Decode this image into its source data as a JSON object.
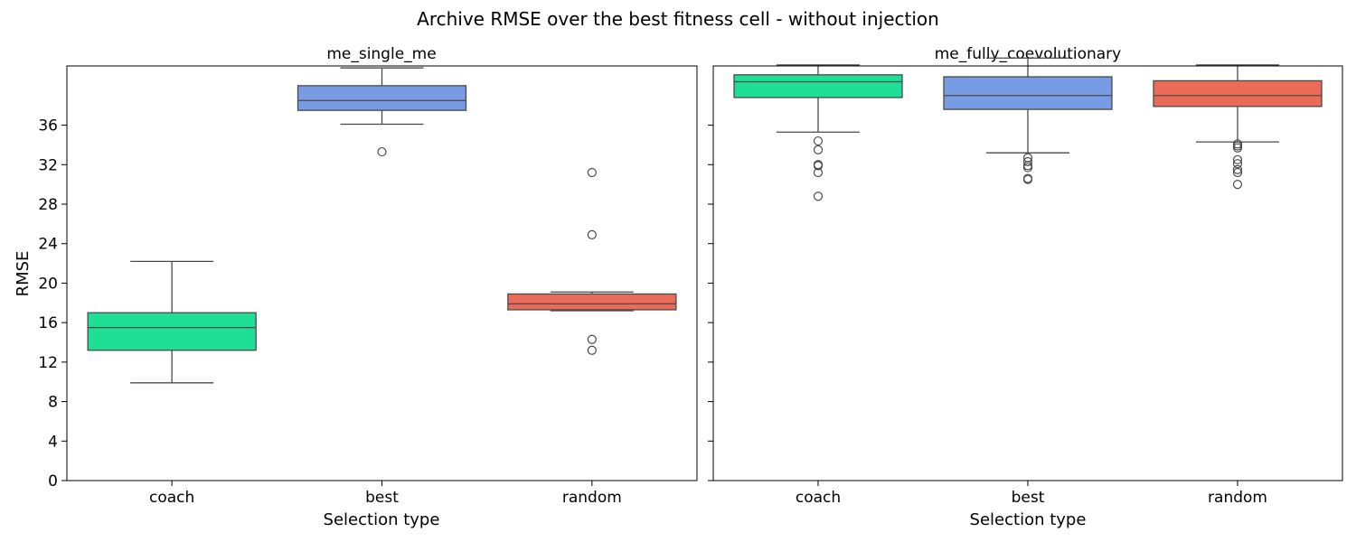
{
  "figure": {
    "title": "Archive RMSE over the best fitness cell - without injection"
  },
  "colors": {
    "coach": "#1fdf96",
    "best": "#779ce4",
    "random": "#ea6b58",
    "line": "#4a4a4a",
    "axes": "#000000"
  },
  "chart_data": [
    {
      "type": "box",
      "title": "me_single_me",
      "xlabel": "Selection type",
      "ylabel": "RMSE",
      "ylim": [
        0,
        42
      ],
      "yticks": [
        0,
        4,
        8,
        12,
        16,
        20,
        24,
        28,
        32,
        36
      ],
      "show_ytick_labels": true,
      "grid": false,
      "categories": [
        "coach",
        "best",
        "random"
      ],
      "boxes": [
        {
          "name": "coach",
          "whisker_low": 9.9,
          "q1": 13.2,
          "median": 15.5,
          "q3": 17.0,
          "whisker_high": 22.2,
          "outliers": []
        },
        {
          "name": "best",
          "whisker_low": 36.1,
          "q1": 37.5,
          "median": 38.5,
          "q3": 40.0,
          "whisker_high": 41.8,
          "outliers": [
            33.3
          ]
        },
        {
          "name": "random",
          "whisker_low": 17.2,
          "q1": 17.3,
          "median": 17.9,
          "q3": 18.9,
          "whisker_high": 19.1,
          "outliers": [
            31.2,
            24.9,
            14.3,
            13.2
          ]
        }
      ]
    },
    {
      "type": "box",
      "title": "me_fully_coevolutionary",
      "xlabel": "Selection type",
      "ylabel": "",
      "ylim": [
        0,
        42
      ],
      "yticks": [
        0,
        4,
        8,
        12,
        16,
        20,
        24,
        28,
        32,
        36
      ],
      "show_ytick_labels": false,
      "grid": false,
      "categories": [
        "coach",
        "best",
        "random"
      ],
      "boxes": [
        {
          "name": "coach",
          "whisker_low": 35.3,
          "q1": 38.8,
          "median": 40.4,
          "q3": 41.1,
          "whisker_high": 42.1,
          "outliers": [
            34.4,
            33.5,
            32.0,
            31.9,
            31.2,
            28.8
          ]
        },
        {
          "name": "best",
          "whisker_low": 33.2,
          "q1": 37.6,
          "median": 39.0,
          "q3": 40.9,
          "whisker_high": 42.8,
          "outliers": [
            32.7,
            32.3,
            31.9,
            31.7,
            30.6,
            30.5
          ]
        },
        {
          "name": "random",
          "whisker_low": 34.3,
          "q1": 37.9,
          "median": 39.0,
          "q3": 40.5,
          "whisker_high": 42.1,
          "outliers": [
            34.1,
            33.9,
            33.7,
            32.5,
            32.1,
            31.5,
            31.2,
            30.0
          ]
        }
      ]
    }
  ]
}
